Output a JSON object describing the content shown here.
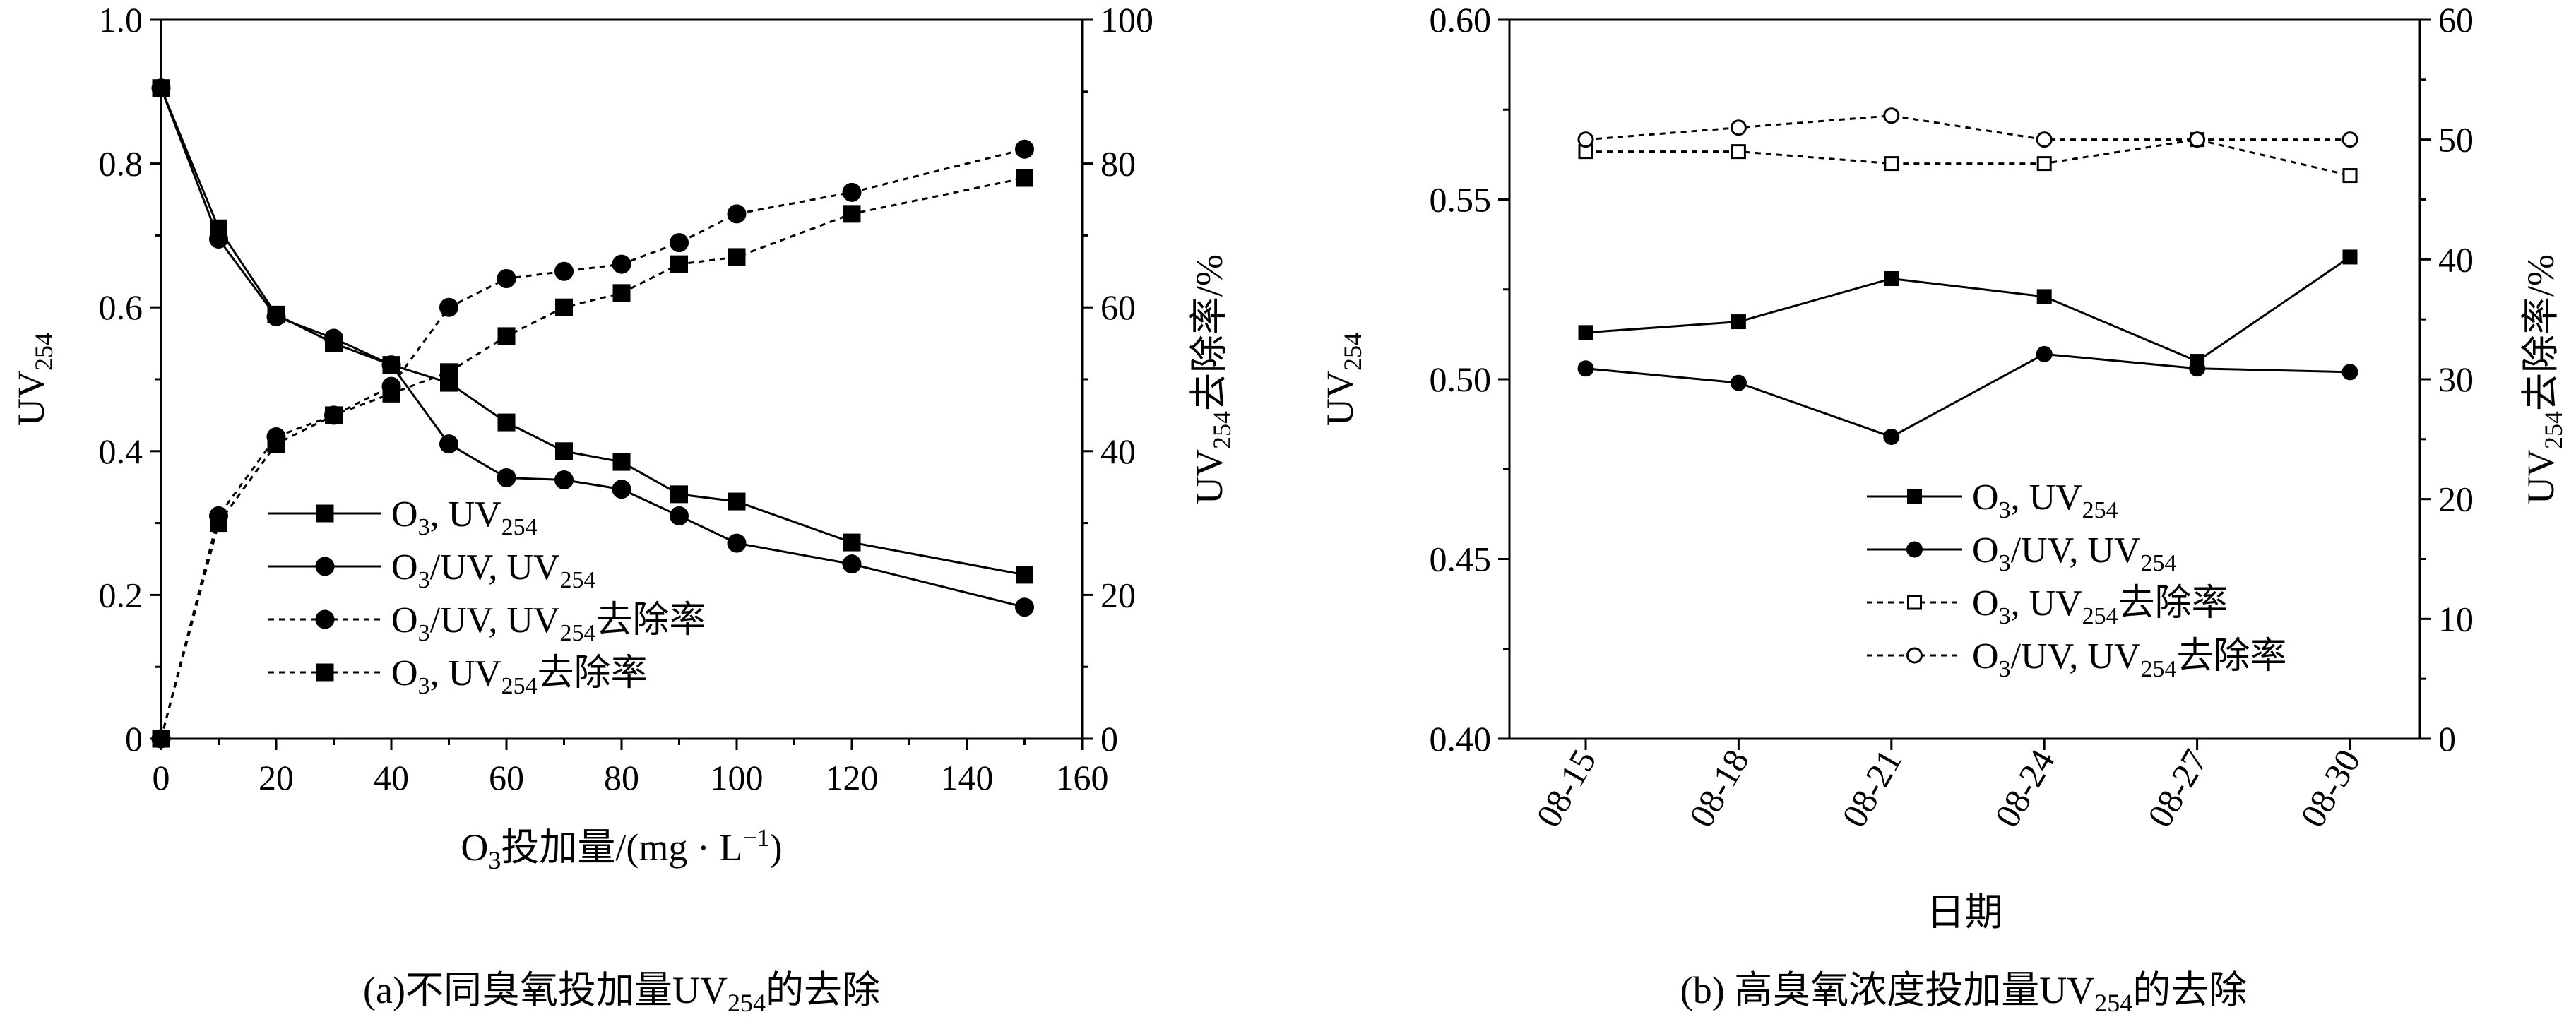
{
  "chart_data": [
    {
      "type": "line",
      "caption": "(a)不同臭氧投加量UV254的去除",
      "caption_parts": {
        "pre": "(a)不同臭氧投加量UV",
        "sub": "254",
        "post": "的去除"
      },
      "xlabel": "O3投加量/(mg · L−1)",
      "xlabel_parts": {
        "a": "O",
        "a_sub": "3",
        "b": "投加量/(mg · L",
        "b_sup": "−1",
        "c": ")"
      },
      "ylabel_left": "UV254",
      "ylabel_left_parts": {
        "main": "UV",
        "sub": "254"
      },
      "ylabel_right": "UV254去除率/%",
      "ylabel_right_parts": {
        "main": "UV",
        "sub": "254",
        "post": "去除率/%"
      },
      "xlim": [
        0,
        160
      ],
      "ylim_left": [
        0,
        1.0
      ],
      "ylim_right": [
        0,
        100
      ],
      "x_ticks": [
        0,
        20,
        40,
        60,
        80,
        100,
        120,
        140,
        160
      ],
      "y_left_ticks": [
        "0",
        "0.2",
        "0.4",
        "0.6",
        "0.8",
        "1.0"
      ],
      "y_right_ticks": [
        "0",
        "20",
        "40",
        "60",
        "80",
        "100"
      ],
      "legend_position": "center-left",
      "series": [
        {
          "name": "O3, UV254",
          "name_parts": {
            "pre": "O",
            "s1": "3",
            "mid": ", UV",
            "s2": "254",
            "post": ""
          },
          "axis": "left",
          "marker": "square",
          "filled": true,
          "dashed": false,
          "x": [
            0,
            10,
            20,
            30,
            40,
            50,
            60,
            70,
            80,
            90,
            100,
            120,
            150
          ],
          "y": [
            0.905,
            0.71,
            0.59,
            0.55,
            0.52,
            0.495,
            0.44,
            0.4,
            0.385,
            0.34,
            0.33,
            0.273,
            0.228
          ]
        },
        {
          "name": "O3/UV, UV254",
          "name_parts": {
            "pre": "O",
            "s1": "3",
            "mid": "/UV, UV",
            "s2": "254",
            "post": ""
          },
          "axis": "left",
          "marker": "circle",
          "filled": true,
          "dashed": false,
          "x": [
            0,
            10,
            20,
            30,
            40,
            50,
            60,
            70,
            80,
            90,
            100,
            120,
            150
          ],
          "y": [
            0.905,
            0.695,
            0.587,
            0.557,
            0.52,
            0.41,
            0.363,
            0.36,
            0.347,
            0.31,
            0.272,
            0.243,
            0.183
          ]
        },
        {
          "name": "O3/UV, UV254去除率",
          "name_parts": {
            "pre": "O",
            "s1": "3",
            "mid": "/UV, UV",
            "s2": "254",
            "post": "去除率"
          },
          "axis": "right",
          "marker": "circle",
          "filled": true,
          "dashed": true,
          "x": [
            0,
            10,
            20,
            30,
            40,
            50,
            60,
            70,
            80,
            90,
            100,
            120,
            150
          ],
          "y": [
            0,
            31,
            42,
            45,
            49,
            60,
            64,
            65,
            66,
            69,
            73,
            76,
            82
          ]
        },
        {
          "name": "O3, UV254去除率",
          "name_parts": {
            "pre": "O",
            "s1": "3",
            "mid": ", UV",
            "s2": "254",
            "post": "去除率"
          },
          "axis": "right",
          "marker": "square",
          "filled": true,
          "dashed": true,
          "x": [
            0,
            10,
            20,
            30,
            40,
            50,
            60,
            70,
            80,
            90,
            100,
            120,
            150
          ],
          "y": [
            0,
            30,
            41,
            45,
            48,
            51,
            56,
            60,
            62,
            66,
            67,
            73,
            78
          ]
        }
      ]
    },
    {
      "type": "line",
      "caption": "(b) 高臭氧浓度投加量UV254的去除",
      "caption_parts": {
        "pre": "(b) 高臭氧浓度投加量UV",
        "sub": "254",
        "post": "的去除"
      },
      "xlabel": "日期",
      "ylabel_left": "UV254",
      "ylabel_left_parts": {
        "main": "UV",
        "sub": "254"
      },
      "ylabel_right": "UV254去除率/%",
      "ylabel_right_parts": {
        "main": "UV",
        "sub": "254",
        "post": "去除率/%"
      },
      "categories": [
        "08-15",
        "08-18",
        "08-21",
        "08-24",
        "08-27",
        "08-30"
      ],
      "ylim_left": [
        0.4,
        0.6
      ],
      "ylim_right": [
        0,
        60
      ],
      "y_left_ticks": [
        "0.40",
        "0.45",
        "0.50",
        "0.55",
        "0.60"
      ],
      "y_right_ticks": [
        "0",
        "10",
        "20",
        "30",
        "40",
        "50",
        "60"
      ],
      "legend_position": "lower-right",
      "series": [
        {
          "name": "O3, UV254",
          "name_parts": {
            "pre": "O",
            "s1": "3",
            "mid": ", UV",
            "s2": "254",
            "post": ""
          },
          "axis": "left",
          "marker": "square",
          "filled": true,
          "dashed": false,
          "values": [
            0.513,
            0.516,
            0.528,
            0.523,
            0.505,
            0.534
          ]
        },
        {
          "name": "O3/UV, UV254",
          "name_parts": {
            "pre": "O",
            "s1": "3",
            "mid": "/UV, UV",
            "s2": "254",
            "post": ""
          },
          "axis": "left",
          "marker": "circle",
          "filled": true,
          "dashed": false,
          "values": [
            0.503,
            0.499,
            0.484,
            0.507,
            0.503,
            0.502
          ]
        },
        {
          "name": "O3, UV254去除率",
          "name_parts": {
            "pre": "O",
            "s1": "3",
            "mid": ", UV",
            "s2": "254",
            "post": "去除率"
          },
          "axis": "right",
          "marker": "square",
          "filled": false,
          "dashed": true,
          "values": [
            49,
            49,
            48,
            48,
            50,
            47
          ]
        },
        {
          "name": "O3/UV, UV254去除率",
          "name_parts": {
            "pre": "O",
            "s1": "3",
            "mid": "/UV, UV",
            "s2": "254",
            "post": "去除率"
          },
          "axis": "right",
          "marker": "circle",
          "filled": false,
          "dashed": true,
          "values": [
            50,
            51,
            52,
            50,
            50,
            50
          ]
        }
      ]
    }
  ]
}
